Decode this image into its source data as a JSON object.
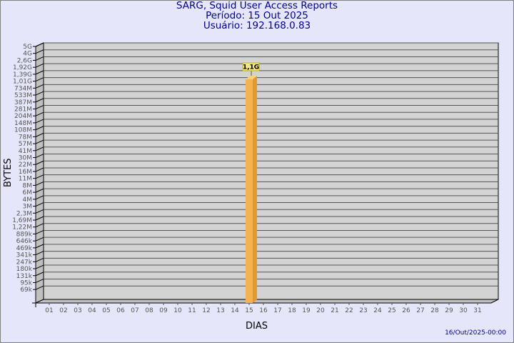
{
  "chart_data": {
    "type": "bar",
    "title": "SARG, Squid User Access Reports",
    "subtitle": [
      "Período: 15 Out 2025",
      "Usuário: 192.168.0.83"
    ],
    "xlabel": "DIAS",
    "ylabel": "BYTES",
    "y_scale": "log",
    "grid": true,
    "categories": [
      "01",
      "02",
      "03",
      "04",
      "05",
      "06",
      "07",
      "08",
      "09",
      "10",
      "11",
      "12",
      "13",
      "14",
      "15",
      "16",
      "17",
      "18",
      "19",
      "20",
      "21",
      "22",
      "23",
      "24",
      "25",
      "26",
      "27",
      "28",
      "29",
      "30",
      "31"
    ],
    "y_ticks": [
      "5G",
      "4G",
      "2,6G",
      "1,92G",
      "1,39G",
      "1,01G",
      "734M",
      "533M",
      "387M",
      "281M",
      "204M",
      "148M",
      "108M",
      "78M",
      "57M",
      "41M",
      "30M",
      "22M",
      "16M",
      "11M",
      "8M",
      "6M",
      "4M",
      "3M",
      "2,3M",
      "1,69M",
      "1,22M",
      "889k",
      "646k",
      "469k",
      "341k",
      "247k",
      "180k",
      "131k",
      "95k",
      "69k"
    ],
    "bars": [
      {
        "category": "15",
        "value_bytes": 1100000000,
        "label": "1,1G"
      }
    ],
    "colors": {
      "bar": "#f4b350",
      "bar_side": "#e09a30",
      "bar_top": "#ffd070",
      "plot_bg": "#d3d3d3",
      "label_bg": "#f0e68c",
      "title": "#00008b",
      "background": "#e6e6fa"
    }
  },
  "footer": "16/Out/2025-00:00"
}
